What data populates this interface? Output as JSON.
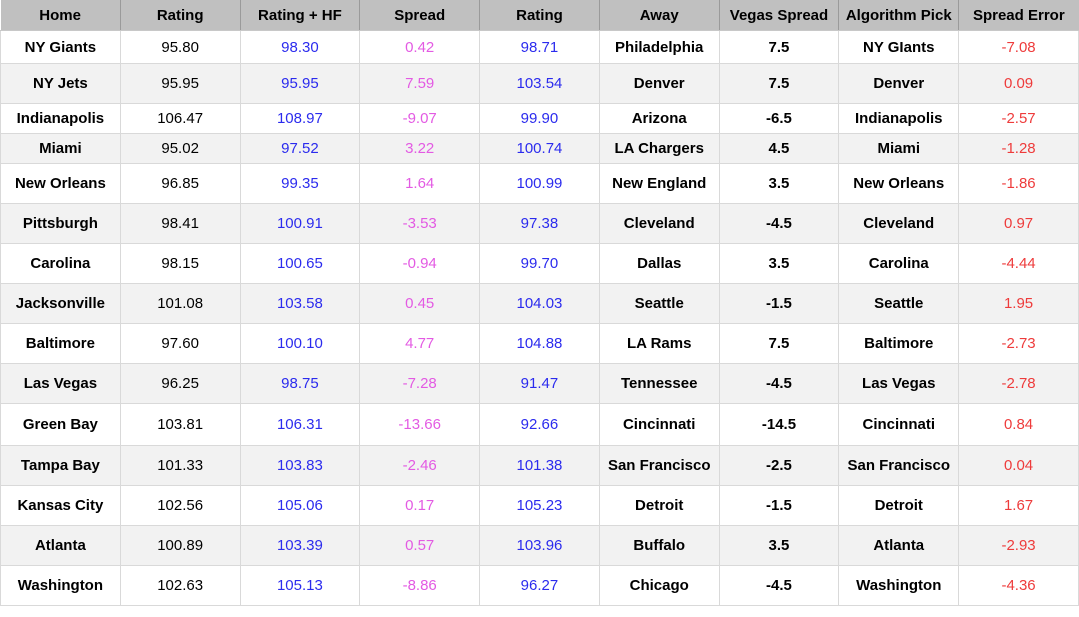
{
  "table": {
    "columns": [
      "Home",
      "Rating",
      "Rating + HF",
      "Spread",
      "Rating",
      "Away",
      "Vegas Spread",
      "Algorithm Pick",
      "Spread Error"
    ],
    "column_keys": [
      "home",
      "rating-home",
      "rating-hf",
      "spread",
      "rating-away",
      "away",
      "vegas-spread",
      "algorithm-pick",
      "spread-error"
    ],
    "rows": [
      [
        "NY Giants",
        "95.80",
        "98.30",
        "0.42",
        "98.71",
        "Philadelphia",
        "7.5",
        "NY GIants",
        "-7.08"
      ],
      [
        "NY Jets",
        "95.95",
        "95.95",
        "7.59",
        "103.54",
        "Denver",
        "7.5",
        "Denver",
        "0.09"
      ],
      [
        "Indianapolis",
        "106.47",
        "108.97",
        "-9.07",
        "99.90",
        "Arizona",
        "-6.5",
        "Indianapolis",
        "-2.57"
      ],
      [
        "Miami",
        "95.02",
        "97.52",
        "3.22",
        "100.74",
        "LA Chargers",
        "4.5",
        "Miami",
        "-1.28"
      ],
      [
        "New Orleans",
        "96.85",
        "99.35",
        "1.64",
        "100.99",
        "New England",
        "3.5",
        "New Orleans",
        "-1.86"
      ],
      [
        "Pittsburgh",
        "98.41",
        "100.91",
        "-3.53",
        "97.38",
        "Cleveland",
        "-4.5",
        "Cleveland",
        "0.97"
      ],
      [
        "Carolina",
        "98.15",
        "100.65",
        "-0.94",
        "99.70",
        "Dallas",
        "3.5",
        "Carolina",
        "-4.44"
      ],
      [
        "Jacksonville",
        "101.08",
        "103.58",
        "0.45",
        "104.03",
        "Seattle",
        "-1.5",
        "Seattle",
        "1.95"
      ],
      [
        "Baltimore",
        "97.60",
        "100.10",
        "4.77",
        "104.88",
        "LA Rams",
        "7.5",
        "Baltimore",
        "-2.73"
      ],
      [
        "Las Vegas",
        "96.25",
        "98.75",
        "-7.28",
        "91.47",
        "Tennessee",
        "-4.5",
        "Las Vegas",
        "-2.78"
      ],
      [
        "Green Bay",
        "103.81",
        "106.31",
        "-13.66",
        "92.66",
        "Cincinnati",
        "-14.5",
        "Cincinnati",
        "0.84"
      ],
      [
        "Tampa Bay",
        "101.33",
        "103.83",
        "-2.46",
        "101.38",
        "San Francisco",
        "-2.5",
        "San Francisco",
        "0.04"
      ],
      [
        "Kansas City",
        "102.56",
        "105.06",
        "0.17",
        "105.23",
        "Detroit",
        "-1.5",
        "Detroit",
        "1.67"
      ],
      [
        "Atlanta",
        "100.89",
        "103.39",
        "0.57",
        "103.96",
        "Buffalo",
        "3.5",
        "Atlanta",
        "-2.93"
      ],
      [
        "Washington",
        "102.63",
        "105.13",
        "-8.86",
        "96.27",
        "Chicago",
        "-4.5",
        "Washington",
        "-4.36"
      ]
    ]
  },
  "colors": {
    "header_bg": "#c0c0c0",
    "header_divider": "#9a9a9a",
    "row_alt_bg": "#f2f2f2",
    "grid_line": "#d9d9d9",
    "rating_hf_text": "#2b2bee",
    "away_rating_text": "#2b2bee",
    "spread_text": "#e35ae3",
    "spread_error_text": "#ee3b3b",
    "default_text": "#000000"
  }
}
